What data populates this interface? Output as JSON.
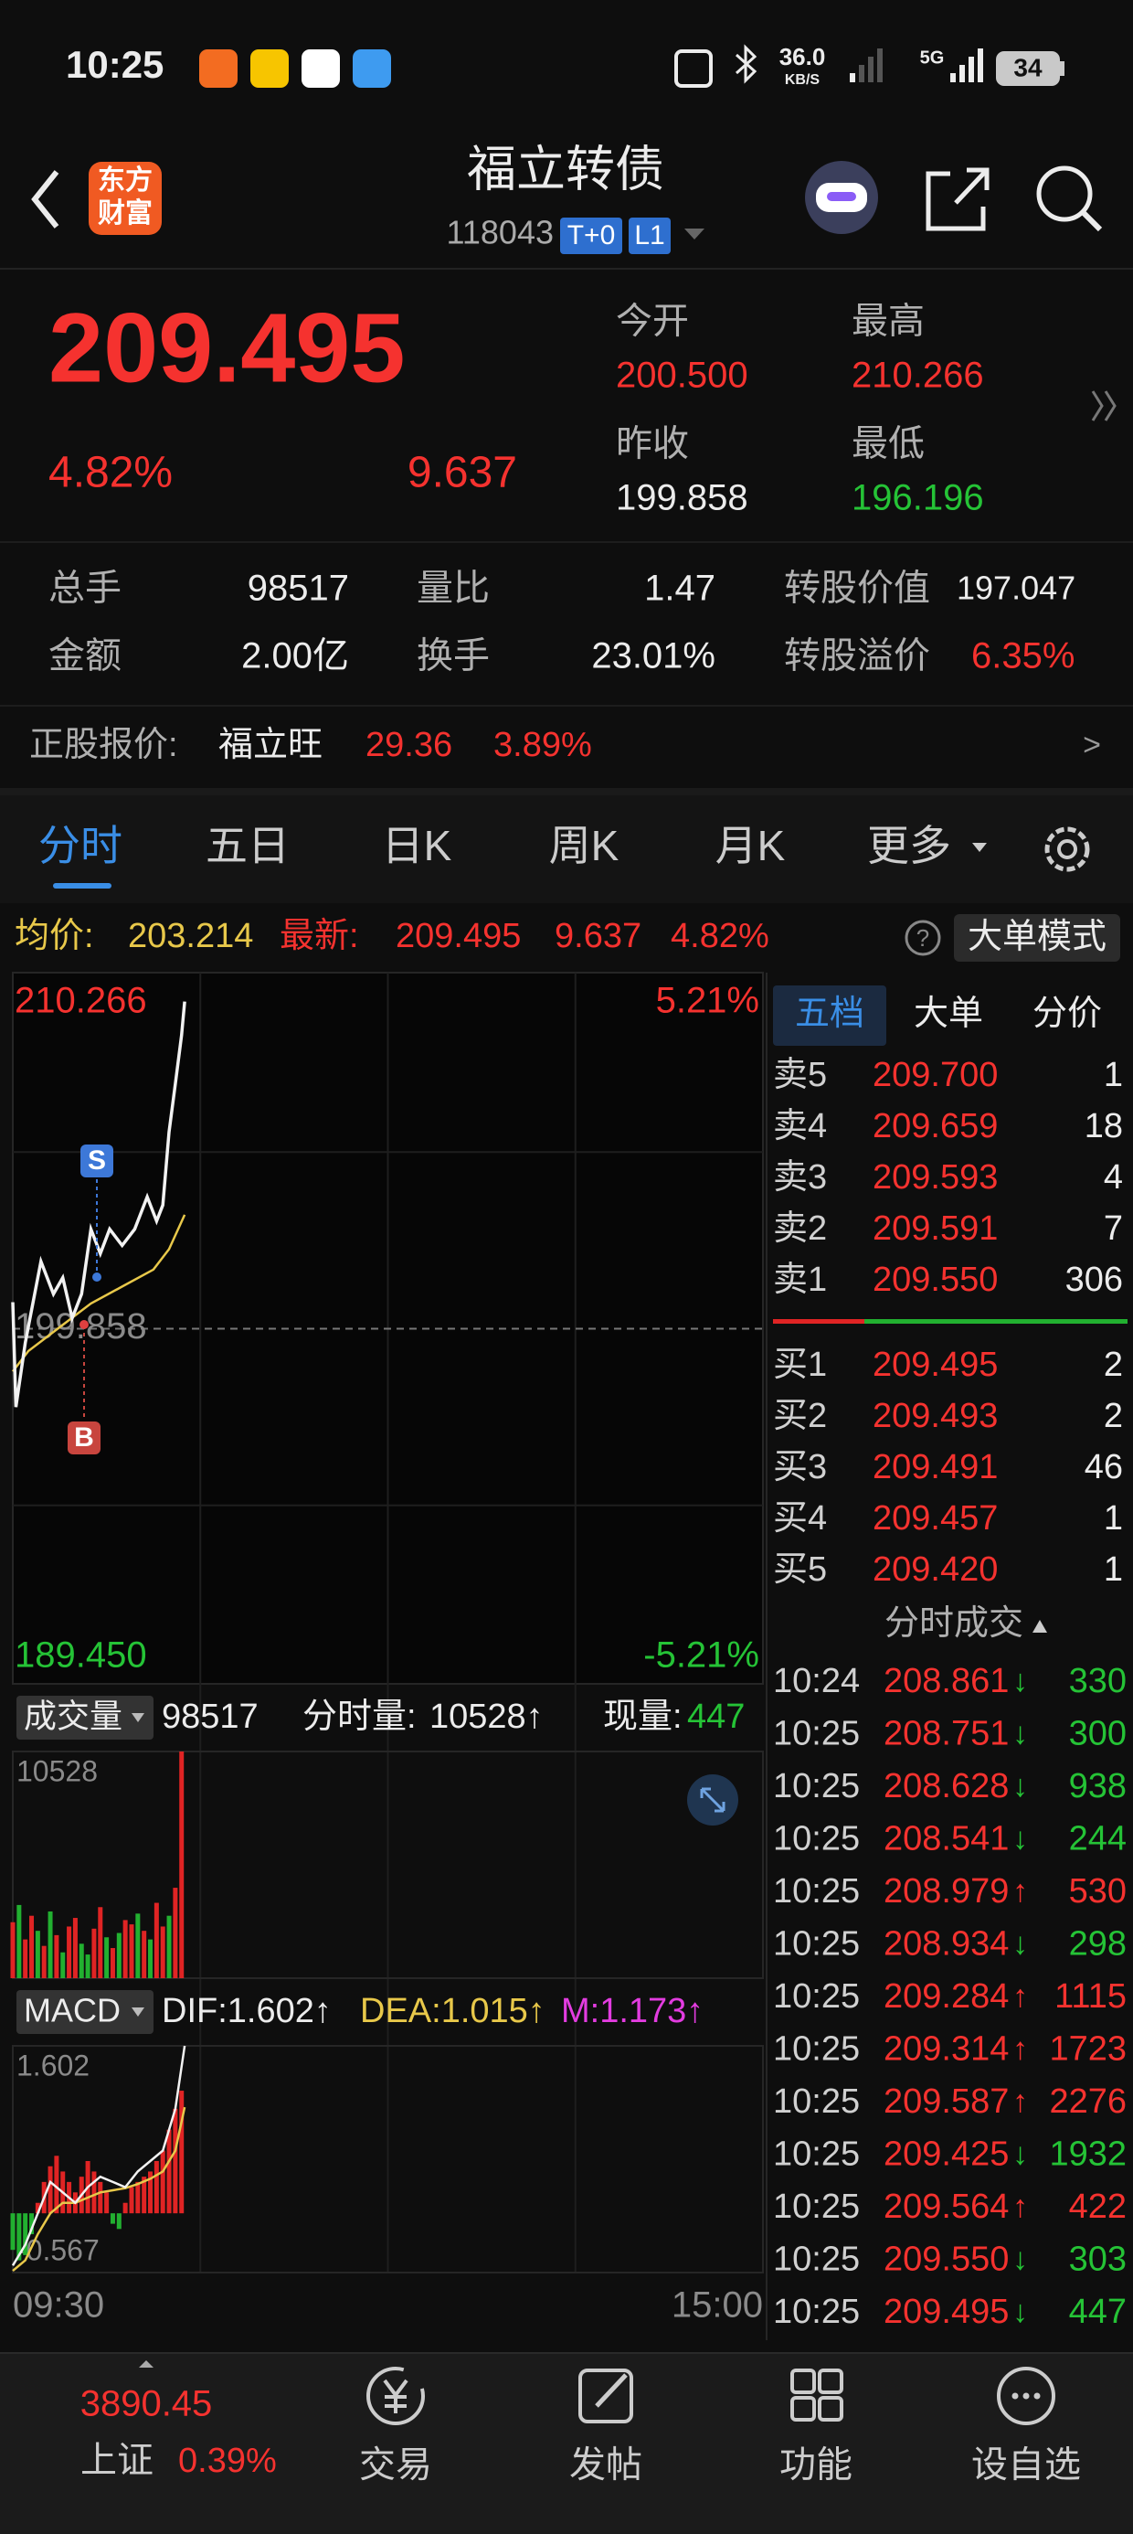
{
  "status_bar": {
    "time": "10:25",
    "speed": "36.0",
    "speed_unit": "KB/S",
    "network": "5G",
    "battery": "34"
  },
  "header": {
    "logo": [
      "东方",
      "财富"
    ],
    "title": "福立转债",
    "code": "118043",
    "tags": [
      "T+0",
      "L1"
    ]
  },
  "quote": {
    "price": "209.495",
    "change_pct": "4.82%",
    "change": "9.637",
    "fields": [
      {
        "label": "今开",
        "value": "200.500"
      },
      {
        "label": "最高",
        "value": "210.266"
      },
      {
        "label": "昨收",
        "value": "199.858"
      },
      {
        "label": "最低",
        "value": "196.196"
      }
    ]
  },
  "stats": [
    {
      "label": "总手",
      "value": "98517"
    },
    {
      "label": "量比",
      "value": "1.47"
    },
    {
      "label": "转股价值",
      "value": "197.047"
    },
    {
      "label": "金额",
      "value": "2.00亿"
    },
    {
      "label": "换手",
      "value": "23.01%"
    },
    {
      "label": "转股溢价",
      "value": "6.35%"
    }
  ],
  "stock_quote": {
    "label": "正股报价:",
    "name": "福立旺",
    "price": "29.36",
    "change_pct": "3.89%",
    "more": ">"
  },
  "tabs": [
    "分时",
    "五日",
    "日K",
    "周K",
    "月K",
    "更多"
  ],
  "info_bar": {
    "avg_label": "均价:",
    "avg": "203.214",
    "last_label": "最新:",
    "last": "209.495",
    "change": "9.637",
    "change_pct": "4.82%",
    "help": "?",
    "mode_button": "大单模式"
  },
  "intraday": {
    "xlim": [
      0,
      240
    ],
    "xticks": [
      {
        "value": 0,
        "label": "09:30"
      },
      {
        "value": 240,
        "label": "15:00"
      }
    ],
    "ylim": [
      189.45,
      210.266
    ],
    "yticks": [
      {
        "value": 189.45,
        "label": "189.450"
      },
      199.858,
      210.266
    ],
    "pct_labels": [
      "5.21%",
      "-5.21%"
    ],
    "price": {
      "x": [
        0,
        1,
        4,
        9,
        13,
        16,
        19,
        22,
        25,
        28,
        31,
        35,
        39,
        43,
        46,
        48,
        50,
        52,
        54,
        55
      ],
      "values": [
        200.64,
        197.55,
        199.45,
        201.84,
        200.88,
        201.36,
        200.17,
        200.88,
        202.79,
        202.07,
        202.79,
        202.31,
        202.79,
        203.74,
        203.03,
        203.5,
        205.65,
        207.07,
        208.5,
        209.495
      ]
    },
    "avg": {
      "x": [
        0,
        5,
        15,
        25,
        35,
        45,
        50,
        55
      ],
      "values": [
        198.6,
        199.2,
        199.9,
        200.6,
        201.1,
        201.6,
        202.2,
        203.214
      ]
    },
    "signals": [
      "S",
      "B"
    ]
  },
  "volume": {
    "menu": "成交量",
    "total": "98517",
    "minute_label": "分时量:",
    "minute": "10528↑",
    "current_label": "现量:",
    "current": "447",
    "ylim": [
      0,
      10528
    ],
    "yticks": [
      10528
    ],
    "values": [
      2600,
      3400,
      1800,
      2900,
      2200,
      1500,
      3100,
      2000,
      1200,
      2400,
      2800,
      1600,
      1100,
      2300,
      3300,
      1900,
      1400,
      2100,
      2700,
      2500,
      3000,
      2200,
      1800,
      3500,
      2400,
      2900,
      4200,
      10528
    ],
    "up": [
      true,
      false,
      true,
      true,
      false,
      true,
      false,
      true,
      false,
      true,
      true,
      false,
      false,
      true,
      true,
      false,
      true,
      false,
      true,
      true,
      false,
      true,
      false,
      true,
      true,
      false,
      true,
      true
    ]
  },
  "macd": {
    "menu": "MACD",
    "dif": "DIF:1.602↑",
    "dea": "DEA:1.015↑",
    "m": "M:1.173↑",
    "ylim": [
      -0.567,
      1.602
    ],
    "yticks": [
      1.602,
      -0.567
    ],
    "bars": [
      -0.35,
      -0.45,
      -0.4,
      -0.2,
      0.1,
      0.3,
      0.45,
      0.55,
      0.4,
      0.3,
      0.2,
      0.35,
      0.5,
      0.4,
      0.3,
      0.2,
      -0.1,
      -0.15,
      0.1,
      0.25,
      0.3,
      0.35,
      0.4,
      0.5,
      0.6,
      0.8,
      1.0,
      1.173
    ],
    "dif_line": {
      "x": [
        0,
        4,
        8,
        12,
        16,
        20,
        24,
        28,
        32,
        36,
        40,
        44,
        48,
        52,
        55
      ],
      "values": [
        -0.5,
        -0.3,
        0.0,
        0.3,
        0.2,
        0.1,
        0.25,
        0.35,
        0.3,
        0.25,
        0.4,
        0.5,
        0.6,
        1.0,
        1.602
      ]
    },
    "dea_line": {
      "x": [
        0,
        4,
        8,
        12,
        16,
        20,
        24,
        28,
        32,
        36,
        40,
        44,
        48,
        52,
        55
      ],
      "values": [
        -0.55,
        -0.45,
        -0.2,
        0.0,
        0.1,
        0.1,
        0.15,
        0.2,
        0.22,
        0.24,
        0.28,
        0.33,
        0.4,
        0.6,
        1.015
      ]
    }
  },
  "order_book": {
    "tabs": [
      "五档",
      "大单",
      "分价"
    ],
    "asks": [
      {
        "label": "卖5",
        "price": "209.700",
        "volume": "1"
      },
      {
        "label": "卖4",
        "price": "209.659",
        "volume": "18"
      },
      {
        "label": "卖3",
        "price": "209.593",
        "volume": "4"
      },
      {
        "label": "卖2",
        "price": "209.591",
        "volume": "7"
      },
      {
        "label": "卖1",
        "price": "209.550",
        "volume": "306"
      }
    ],
    "bids": [
      {
        "label": "买1",
        "price": "209.495",
        "volume": "2"
      },
      {
        "label": "买2",
        "price": "209.493",
        "volume": "2"
      },
      {
        "label": "买3",
        "price": "209.491",
        "volume": "46"
      },
      {
        "label": "买4",
        "price": "209.457",
        "volume": "1"
      },
      {
        "label": "买5",
        "price": "209.420",
        "volume": "1"
      }
    ]
  },
  "trades": {
    "title": "分时成交",
    "rows": [
      {
        "time": "10:24",
        "price": "208.861",
        "dir": "↓",
        "volume": "330"
      },
      {
        "time": "10:25",
        "price": "208.751",
        "dir": "↓",
        "volume": "300"
      },
      {
        "time": "10:25",
        "price": "208.628",
        "dir": "↓",
        "volume": "938"
      },
      {
        "time": "10:25",
        "price": "208.541",
        "dir": "↓",
        "volume": "244"
      },
      {
        "time": "10:25",
        "price": "208.979",
        "dir": "↑",
        "volume": "530"
      },
      {
        "time": "10:25",
        "price": "208.934",
        "dir": "↓",
        "volume": "298"
      },
      {
        "time": "10:25",
        "price": "209.284",
        "dir": "↑",
        "volume": "1115"
      },
      {
        "time": "10:25",
        "price": "209.314",
        "dir": "↑",
        "volume": "1723"
      },
      {
        "time": "10:25",
        "price": "209.587",
        "dir": "↑",
        "volume": "2276"
      },
      {
        "time": "10:25",
        "price": "209.425",
        "dir": "↓",
        "volume": "1932"
      },
      {
        "time": "10:25",
        "price": "209.564",
        "dir": "↑",
        "volume": "422"
      },
      {
        "time": "10:25",
        "price": "209.550",
        "dir": "↓",
        "volume": "303"
      },
      {
        "time": "10:25",
        "price": "209.495",
        "dir": "↓",
        "volume": "447"
      }
    ]
  },
  "bottom_nav": {
    "index_value": "3890.45",
    "index_name": "上证",
    "index_pct": "0.39%",
    "items": [
      "交易",
      "发帖",
      "功能",
      "设自选"
    ]
  }
}
